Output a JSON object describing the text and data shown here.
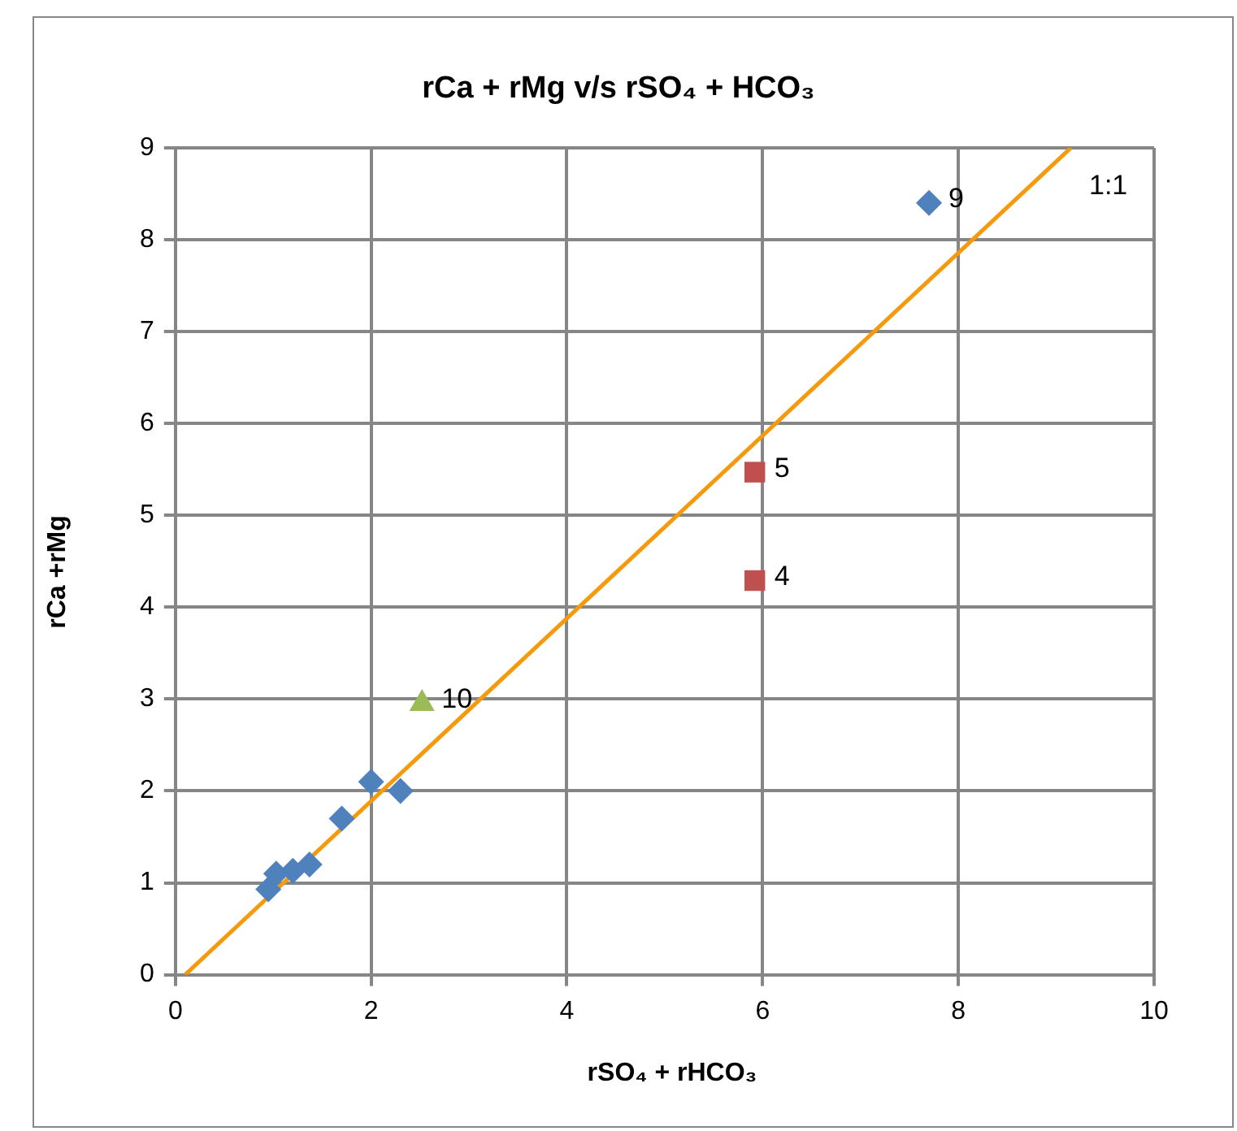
{
  "chart_data": {
    "type": "scatter",
    "title": "rCa + rMg v/s  rSO₄ + HCO₃",
    "xlabel": "rSO₄ + rHCO₃",
    "ylabel": "rCa +rMg",
    "xlim": [
      0,
      10
    ],
    "xticks": [
      0,
      2,
      4,
      6,
      8,
      10
    ],
    "ylim": [
      0,
      9
    ],
    "yticks": [
      0,
      1,
      2,
      3,
      4,
      5,
      6,
      7,
      8,
      9
    ],
    "grid": true,
    "legend": false,
    "series": [
      {
        "color": "#4f81bd",
        "marker": "diamond",
        "x": [
          2.0,
          2.3,
          1.7,
          1.37,
          1.2,
          1.03,
          0.95,
          7.7
        ],
        "values": [
          2.1,
          2.0,
          1.7,
          1.2,
          1.13,
          1.1,
          0.93,
          8.4
        ]
      },
      {
        "color": "#c0504d",
        "marker": "square",
        "x": [
          5.92,
          5.92
        ],
        "values": [
          5.47,
          4.29
        ]
      },
      {
        "color": "#9bbb59",
        "marker": "triangle",
        "x": [
          2.52
        ],
        "values": [
          2.95
        ]
      },
      {
        "type": "line",
        "color": "#f59a0c",
        "marker": "none",
        "line_style": "solid",
        "x": [
          0.1,
          9.15
        ],
        "values": [
          0,
          9
        ]
      }
    ],
    "annotations": [
      {
        "text": "9",
        "x": 7.7,
        "y": 8.4
      },
      {
        "text": "5",
        "x": 5.92,
        "y": 5.47
      },
      {
        "text": "4",
        "x": 5.92,
        "y": 4.29
      },
      {
        "text": "10",
        "x": 2.52,
        "y": 2.95
      },
      "1:1"
    ]
  }
}
